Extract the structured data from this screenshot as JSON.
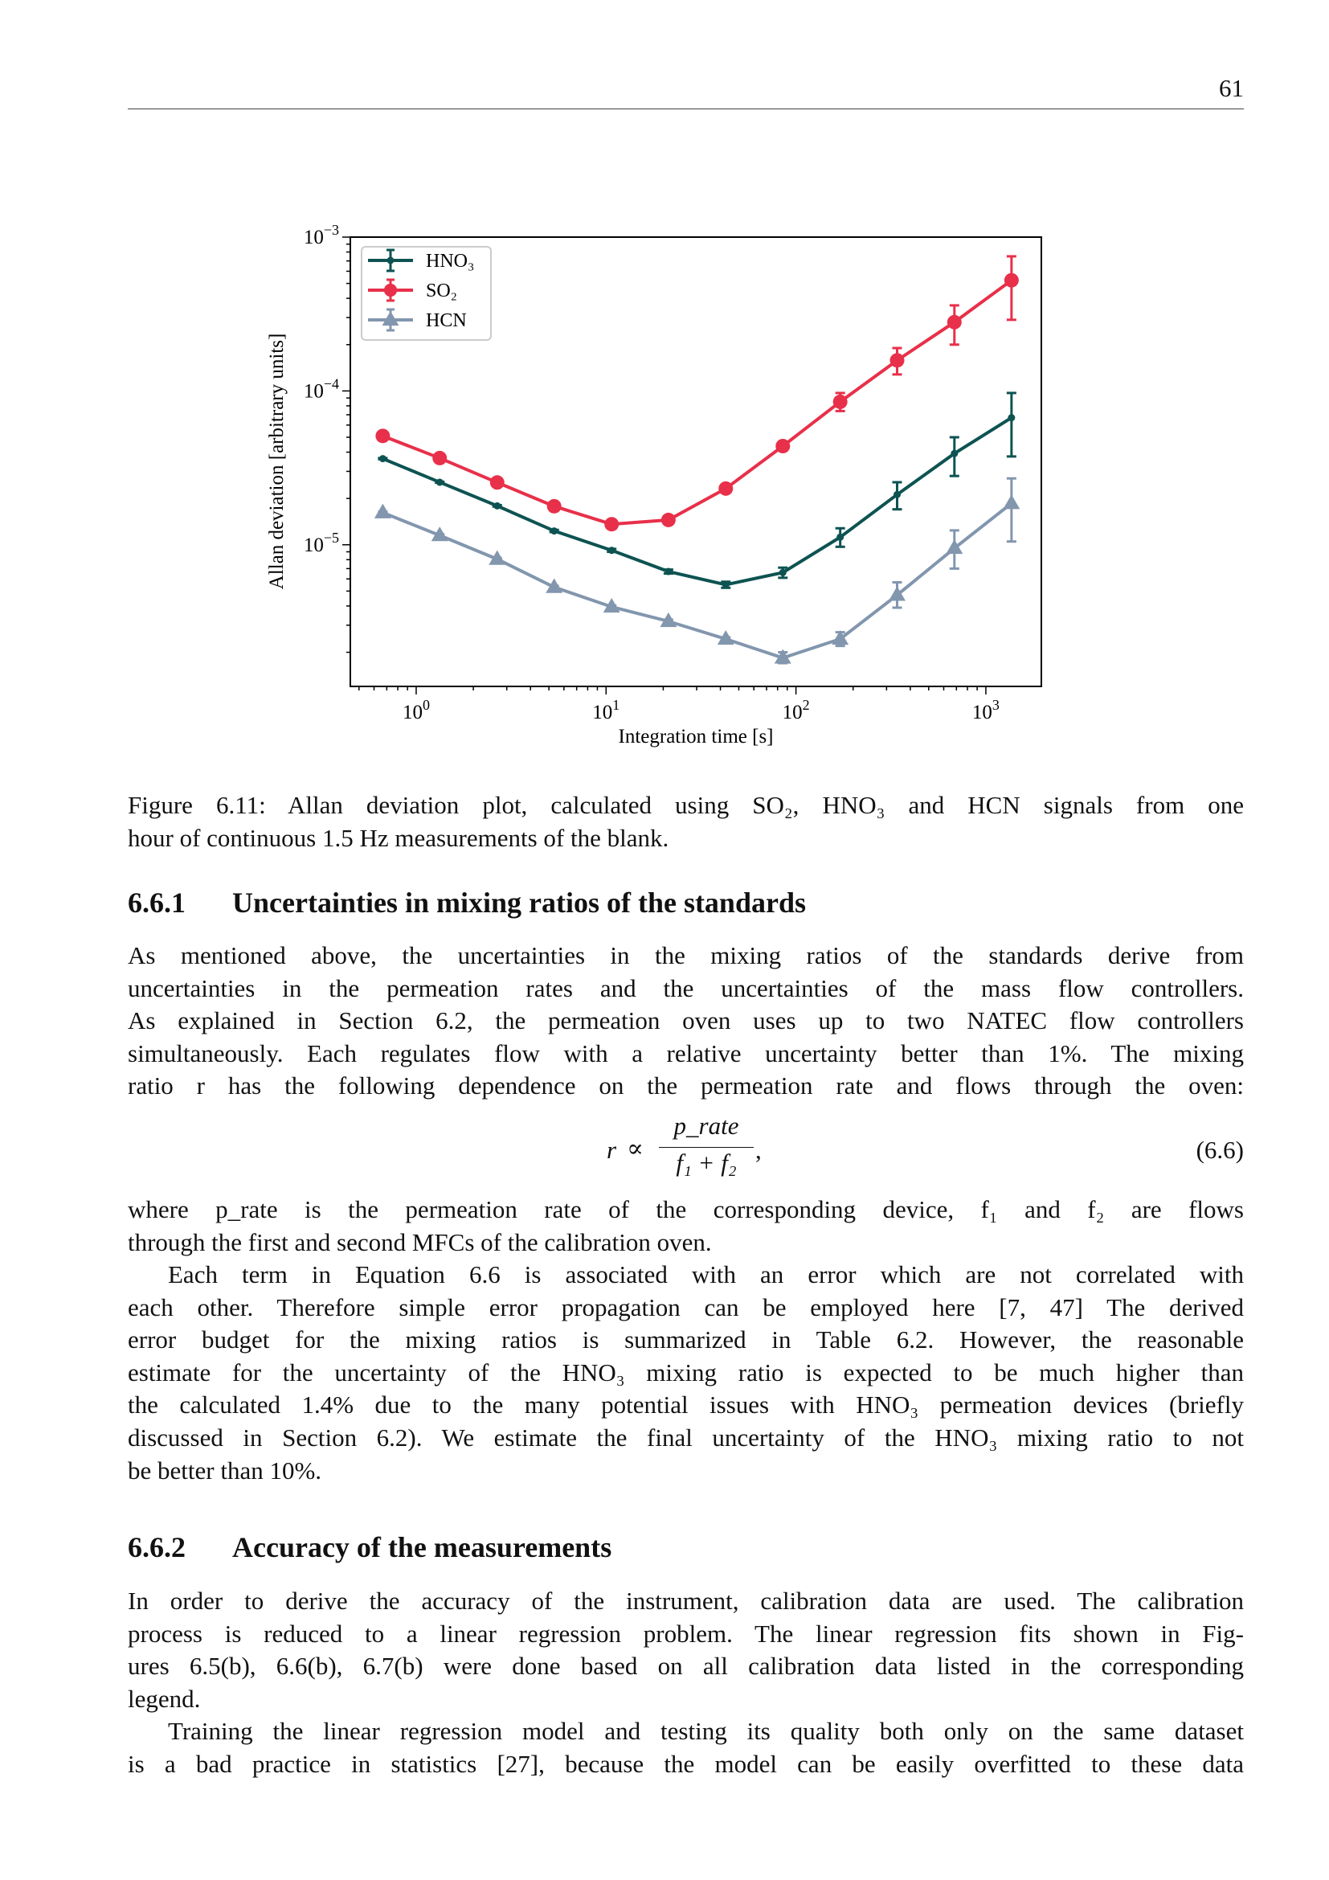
{
  "page_number": "61",
  "chart_data": {
    "type": "line",
    "xlabel": "Integration time [s]",
    "ylabel": "Allan deviation [arbitrary units]",
    "xscale": "log",
    "yscale": "log",
    "xlim": [
      0.45,
      1960
    ],
    "ylim": [
      1.2e-06,
      0.001
    ],
    "xticks": [
      1,
      10,
      100,
      1000
    ],
    "xtick_labels": [
      "10^0",
      "10^1",
      "10^2",
      "10^3"
    ],
    "yticks": [
      1e-05,
      0.0001,
      0.001
    ],
    "ytick_labels": [
      "10^-5",
      "10^-4",
      "10^-3"
    ],
    "legend_placement": "top-left",
    "grid": false,
    "x": [
      0.667,
      1.33,
      2.67,
      5.33,
      10.7,
      21.3,
      42.7,
      85.3,
      171,
      341,
      683,
      1365
    ],
    "series": [
      {
        "name": "HNO₃",
        "color": "#0d5352",
        "marker": "dot",
        "values": [
          3.63e-05,
          2.55e-05,
          1.79e-05,
          1.23e-05,
          9.2e-06,
          6.7e-06,
          5.5e-06,
          6.6e-06,
          1.12e-05,
          2.12e-05,
          3.92e-05,
          6.7e-05
        ],
        "err_low": [
          3.6e-05,
          2.53e-05,
          1.77e-05,
          1.21e-05,
          9e-06,
          6.5e-06,
          5.25e-06,
          6.1e-06,
          9.7e-06,
          1.7e-05,
          2.8e-05,
          3.75e-05
        ],
        "err_high": [
          3.66e-05,
          2.57e-05,
          1.81e-05,
          1.25e-05,
          9.4e-06,
          6.9e-06,
          5.75e-06,
          7.1e-06,
          1.28e-05,
          2.55e-05,
          5e-05,
          9.7e-05
        ]
      },
      {
        "name": "SO₂",
        "color": "#e8304a",
        "marker": "circle",
        "values": [
          5.1e-05,
          3.66e-05,
          2.54e-05,
          1.78e-05,
          1.36e-05,
          1.45e-05,
          2.32e-05,
          4.38e-05,
          8.5e-05,
          0.000158,
          0.00028,
          0.000524
        ],
        "err_low": [
          5.05e-05,
          3.6e-05,
          2.5e-05,
          1.75e-05,
          1.33e-05,
          1.42e-05,
          2.26e-05,
          4.1e-05,
          7.4e-05,
          0.000128,
          0.0002,
          0.00029
        ],
        "err_high": [
          5.15e-05,
          3.72e-05,
          2.58e-05,
          1.81e-05,
          1.39e-05,
          1.48e-05,
          2.38e-05,
          4.65e-05,
          9.7e-05,
          0.00019,
          0.00036,
          0.00075
        ]
      },
      {
        "name": "HCN",
        "color": "#8296ae",
        "marker": "triangle",
        "values": [
          1.62e-05,
          1.15e-05,
          8.07e-06,
          5.3e-06,
          3.95e-06,
          3.18e-06,
          2.44e-06,
          1.84e-06,
          2.44e-06,
          4.71e-06,
          9.5e-06,
          1.86e-05
        ],
        "err_low": [
          1.6e-05,
          1.13e-05,
          7.95e-06,
          5.2e-06,
          3.87e-06,
          3.1e-06,
          2.38e-06,
          1.7e-06,
          2.2e-06,
          3.9e-06,
          7e-06,
          1.05e-05
        ],
        "err_high": [
          1.64e-05,
          1.17e-05,
          8.2e-06,
          5.4e-06,
          4.03e-06,
          3.26e-06,
          2.5e-06,
          2e-06,
          2.7e-06,
          5.7e-06,
          1.24e-05,
          2.7e-05
        ]
      }
    ]
  },
  "caption": {
    "lines": [
      "Figure 6.11: Allan deviation plot, calculated using SO₂, HNO₃ and HCN signals from one",
      "hour of continuous 1.5 Hz measurements of the blank."
    ]
  },
  "section1": {
    "number": "6.6.1",
    "title": "Uncertainties in mixing ratios of the standards",
    "para1": [
      "As mentioned above, the uncertainties in the mixing ratios of the standards derive from",
      "uncertainties in the permeation rates and the uncertainties of the mass flow controllers.",
      "As explained in Section 6.2, the permeation oven uses up to two NATEC flow controllers",
      "simultaneously. Each regulates flow with a relative uncertainty better than 1%. The mixing",
      "ratio r has the following dependence on the permeation rate and flows through the oven:"
    ],
    "equation": {
      "lhs": "r",
      "relation": "∝",
      "numerator": "p_rate",
      "denominator": "f₁ + f₂",
      "trail": ",",
      "tag": "(6.6)"
    },
    "para2": [
      "where p_rate is the permeation rate of the corresponding device, f₁ and f₂ are flows",
      "through the first and second MFCs of the calibration oven."
    ],
    "para3": [
      "Each term in Equation 6.6 is associated with an error which are not correlated with",
      "each other. Therefore simple error propagation can be employed here [7, 47] The derived",
      "error budget for the mixing ratios is summarized in Table 6.2.  However, the reasonable",
      "estimate for the uncertainty of the HNO₃ mixing ratio is expected to be much higher than",
      "the calculated 1.4% due to the many potential issues with HNO₃ permeation devices (briefly",
      "discussed in Section 6.2). We estimate the final uncertainty of the HNO₃ mixing ratio to not",
      "be better than 10%."
    ]
  },
  "section2": {
    "number": "6.6.2",
    "title": "Accuracy of the measurements",
    "para1": [
      "In order to derive the accuracy of the instrument, calibration data are used. The calibration",
      "process is reduced to a linear regression problem. The linear regression fits shown in Fig-",
      "ures 6.5(b), 6.6(b), 6.7(b) were done based on all calibration data listed in the corresponding",
      "legend."
    ],
    "para2": [
      "Training the linear regression model and testing its quality both only on the same dataset",
      "is a bad practice in statistics [27], because the model can be easily overfitted to these data"
    ]
  }
}
